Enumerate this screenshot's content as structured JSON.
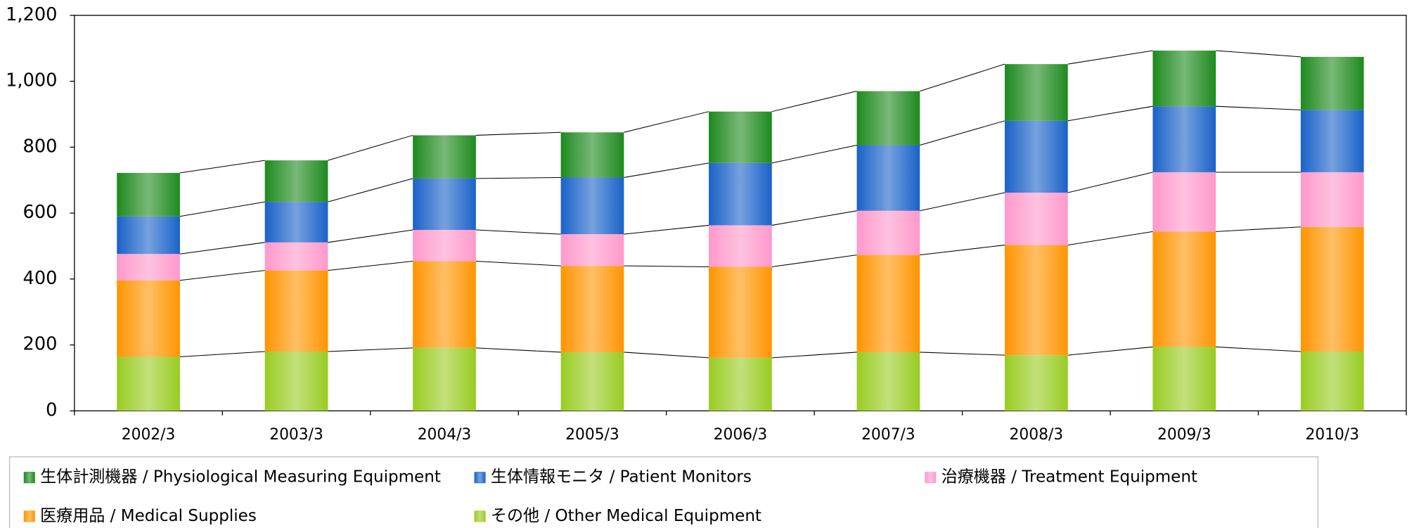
{
  "chart_data": {
    "type": "stacked_bar",
    "categories": [
      "2002/3",
      "2003/3",
      "2004/3",
      "2005/3",
      "2006/3",
      "2007/3",
      "2008/3",
      "2009/3",
      "2010/3"
    ],
    "series": [
      {
        "name": "生体計測機器 / Physiological Measuring Equipment",
        "color": "#1e8a1e",
        "values": [
          132,
          126,
          131,
          137,
          156,
          164,
          172,
          169,
          161
        ]
      },
      {
        "name": "生体情報モニタ / Patient Monitors",
        "color": "#1a62c8",
        "values": [
          114,
          123,
          156,
          172,
          189,
          199,
          218,
          200,
          189
        ]
      },
      {
        "name": "治療機器 / Treatment Equipment",
        "color": "#ff99cc",
        "values": [
          80,
          85,
          95,
          96,
          126,
          134,
          159,
          180,
          166
        ]
      },
      {
        "name": "医療用品 / Medical Supplies",
        "color": "#ff9500",
        "values": [
          232,
          246,
          263,
          262,
          276,
          295,
          334,
          350,
          378
        ]
      },
      {
        "name": "その他 / Other Medical Equipment",
        "color": "#99cc22",
        "values": [
          164,
          180,
          191,
          178,
          161,
          178,
          169,
          194,
          180
        ]
      }
    ],
    "ylim": [
      0,
      1200
    ],
    "yticks": [
      0,
      200,
      400,
      600,
      800,
      {
        "value": 1000,
        "label": "1,000"
      },
      {
        "value": 1200,
        "label": "1,200"
      }
    ],
    "grid": false,
    "legend": "bottom",
    "connectors": true
  }
}
